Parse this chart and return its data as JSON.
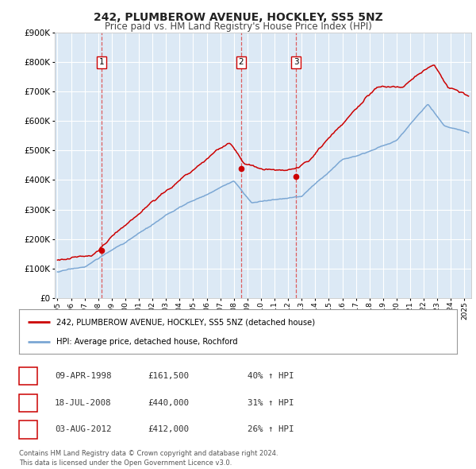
{
  "title": "242, PLUMBEROW AVENUE, HOCKLEY, SS5 5NZ",
  "subtitle": "Price paid vs. HM Land Registry's House Price Index (HPI)",
  "sale_label": "242, PLUMBEROW AVENUE, HOCKLEY, SS5 5NZ (detached house)",
  "hpi_label": "HPI: Average price, detached house, Rochford",
  "sale_color": "#cc0000",
  "hpi_color": "#7ba7d4",
  "fig_bg_color": "#ffffff",
  "plot_bg_color": "#dce9f5",
  "grid_color": "#ffffff",
  "ylim": [
    0,
    900000
  ],
  "yticks": [
    0,
    100000,
    200000,
    300000,
    400000,
    500000,
    600000,
    700000,
    800000,
    900000
  ],
  "ytick_labels": [
    "£0",
    "£100K",
    "£200K",
    "£300K",
    "£400K",
    "£500K",
    "£600K",
    "£700K",
    "£800K",
    "£900K"
  ],
  "xlim_start": 1994.8,
  "xlim_end": 2025.5,
  "xticks": [
    1995,
    1996,
    1997,
    1998,
    1999,
    2000,
    2001,
    2002,
    2003,
    2004,
    2005,
    2006,
    2007,
    2008,
    2009,
    2010,
    2011,
    2012,
    2013,
    2014,
    2015,
    2016,
    2017,
    2018,
    2019,
    2020,
    2021,
    2022,
    2023,
    2024,
    2025
  ],
  "sales": [
    {
      "year": 1998.27,
      "price": 161500,
      "label": "1"
    },
    {
      "year": 2008.54,
      "price": 440000,
      "label": "2"
    },
    {
      "year": 2012.59,
      "price": 412000,
      "label": "3"
    }
  ],
  "vline_color": "#dd4444",
  "table_rows": [
    {
      "num": "1",
      "date": "09-APR-1998",
      "price": "£161,500",
      "pct": "40% ↑ HPI"
    },
    {
      "num": "2",
      "date": "18-JUL-2008",
      "price": "£440,000",
      "pct": "31% ↑ HPI"
    },
    {
      "num": "3",
      "date": "03-AUG-2012",
      "price": "£412,000",
      "pct": "26% ↑ HPI"
    }
  ],
  "footer": "Contains HM Land Registry data © Crown copyright and database right 2024.\nThis data is licensed under the Open Government Licence v3.0."
}
